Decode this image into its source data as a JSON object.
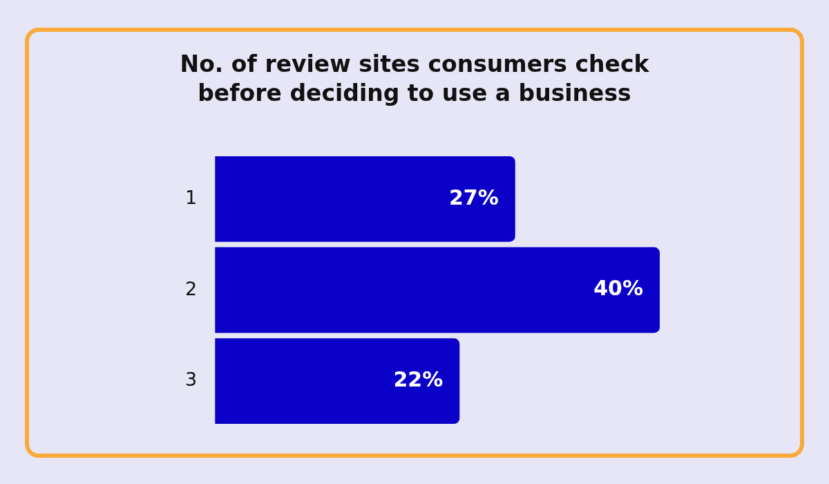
{
  "chart_data": {
    "type": "bar",
    "orientation": "horizontal",
    "title": "No. of review sites consumers check before deciding to use a business",
    "categories": [
      "1",
      "2",
      "3"
    ],
    "values": [
      27,
      40,
      22
    ],
    "color": "#0a00c8",
    "data_labels": true,
    "value_labels": [
      "27%",
      "40%",
      "22%"
    ],
    "grid": false,
    "legend": false
  }
}
